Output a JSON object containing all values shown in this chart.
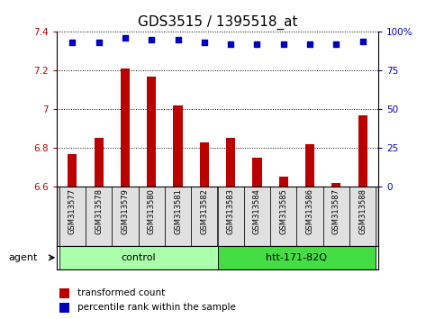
{
  "title": "GDS3515 / 1395518_at",
  "samples": [
    "GSM313577",
    "GSM313578",
    "GSM313579",
    "GSM313580",
    "GSM313581",
    "GSM313582",
    "GSM313583",
    "GSM313584",
    "GSM313585",
    "GSM313586",
    "GSM313587",
    "GSM313588"
  ],
  "transformed_count": [
    6.77,
    6.85,
    7.21,
    7.17,
    7.02,
    6.83,
    6.85,
    6.75,
    6.65,
    6.82,
    6.62,
    6.97
  ],
  "percentile_rank": [
    93,
    93,
    96,
    95,
    95,
    93,
    92,
    92,
    92,
    92,
    92,
    94
  ],
  "groups": [
    {
      "label": "control",
      "start": 0,
      "end": 5,
      "color": "#aaffaa"
    },
    {
      "label": "htt-171-82Q",
      "start": 6,
      "end": 11,
      "color": "#44dd44"
    }
  ],
  "ylim": [
    6.6,
    7.4
  ],
  "yticks": [
    6.6,
    6.8,
    7.0,
    7.2,
    7.4
  ],
  "right_yticks": [
    0,
    25,
    50,
    75,
    100
  ],
  "right_ytick_labels": [
    "0",
    "25",
    "50",
    "75",
    "100%"
  ],
  "bar_color": "#bb0000",
  "dot_color": "#0000bb",
  "title_fontsize": 11,
  "tick_fontsize": 7.5,
  "sample_fontsize": 6,
  "label_fontsize": 8,
  "legend_fontsize": 7.5,
  "bar_width": 0.35
}
